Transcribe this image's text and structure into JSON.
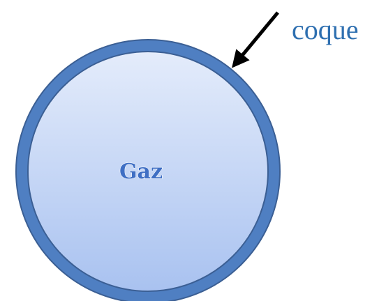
{
  "labels": {
    "center": "Gaz",
    "shell": "coque"
  }
}
